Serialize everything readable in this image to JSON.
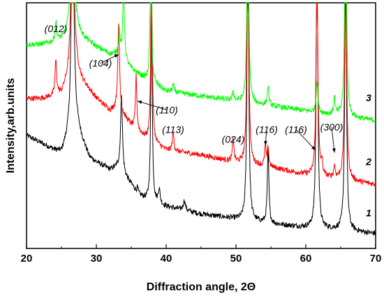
{
  "chart_data": {
    "type": "line",
    "title": "",
    "xlabel": "Diffraction angle, 2Θ",
    "ylabel": "Intensity,arb.units",
    "xlim": [
      20,
      70
    ],
    "ylim": [
      0,
      100
    ],
    "x_ticks": [
      20,
      30,
      40,
      50,
      60,
      70
    ],
    "x_tick_labels": [
      "20",
      "30",
      "40",
      "50",
      "60",
      "70"
    ],
    "grid": false,
    "y_tick_labels": false,
    "series": [
      {
        "name": "1",
        "color": "#000000",
        "baseline": [
          [
            20,
            46
          ],
          [
            22,
            43
          ],
          [
            24,
            40
          ],
          [
            25,
            39
          ],
          [
            26,
            46
          ],
          [
            27,
            52
          ],
          [
            28,
            44
          ],
          [
            29,
            37
          ],
          [
            30,
            35
          ],
          [
            32,
            32
          ],
          [
            33,
            33
          ],
          [
            35,
            26
          ],
          [
            36,
            22
          ],
          [
            37,
            20
          ],
          [
            40,
            17
          ],
          [
            45,
            14
          ],
          [
            50,
            12
          ],
          [
            55,
            10
          ],
          [
            60,
            8.5
          ],
          [
            65,
            7.5
          ],
          [
            70,
            6
          ]
        ],
        "peaks": [
          [
            26.6,
            115,
            0.18
          ],
          [
            33.6,
            32,
            0.16
          ],
          [
            35.9,
            2,
            0.12
          ],
          [
            37.9,
            82,
            0.12
          ],
          [
            39.0,
            6,
            0.15
          ],
          [
            42.6,
            4,
            0.18
          ],
          [
            51.7,
            135,
            0.13
          ],
          [
            54.6,
            30,
            0.13
          ],
          [
            61.6,
            120,
            0.14
          ],
          [
            65.7,
            115,
            0.14
          ]
        ]
      },
      {
        "name": "2",
        "color": "#ff0000",
        "baseline": [
          [
            20,
            61
          ],
          [
            22,
            61
          ],
          [
            24,
            62
          ],
          [
            25,
            63
          ],
          [
            26,
            69
          ],
          [
            27,
            74
          ],
          [
            28,
            68
          ],
          [
            30,
            61
          ],
          [
            32,
            56
          ],
          [
            33,
            57
          ],
          [
            35,
            50
          ],
          [
            37,
            45
          ],
          [
            40,
            40
          ],
          [
            45,
            38
          ],
          [
            50,
            35
          ],
          [
            55,
            33
          ],
          [
            60,
            30
          ],
          [
            65,
            28
          ],
          [
            70,
            26
          ]
        ],
        "peaks": [
          [
            24.2,
            14,
            0.14
          ],
          [
            26.6,
            110,
            0.18
          ],
          [
            33.2,
            35,
            0.15
          ],
          [
            35.7,
            22,
            0.12
          ],
          [
            37.9,
            80,
            0.12
          ],
          [
            41.0,
            7,
            0.15
          ],
          [
            49.6,
            10,
            0.12
          ],
          [
            51.7,
            120,
            0.13
          ],
          [
            54.2,
            8,
            0.12
          ],
          [
            54.6,
            8,
            0.12
          ],
          [
            61.6,
            92,
            0.14
          ],
          [
            62.3,
            5,
            0.12
          ],
          [
            64.1,
            5,
            0.12
          ],
          [
            65.7,
            110,
            0.14
          ]
        ]
      },
      {
        "name": "3",
        "color": "#00ff00",
        "baseline": [
          [
            20,
            83
          ],
          [
            22,
            83
          ],
          [
            24,
            84
          ],
          [
            25,
            85
          ],
          [
            26,
            88
          ],
          [
            27,
            90
          ],
          [
            28,
            86
          ],
          [
            30,
            82
          ],
          [
            32,
            79
          ],
          [
            33,
            79
          ],
          [
            35,
            73
          ],
          [
            37,
            69
          ],
          [
            40,
            64
          ],
          [
            45,
            62
          ],
          [
            50,
            60
          ],
          [
            55,
            58
          ],
          [
            60,
            56
          ],
          [
            65,
            54
          ],
          [
            70,
            52
          ]
        ],
        "peaks": [
          [
            24.2,
            8,
            0.14
          ],
          [
            26.6,
            100,
            0.18
          ],
          [
            33.3,
            10,
            0.14
          ],
          [
            33.9,
            30,
            0.14
          ],
          [
            37.8,
            60,
            0.12
          ],
          [
            41.0,
            3,
            0.15
          ],
          [
            49.6,
            4,
            0.12
          ],
          [
            51.7,
            100,
            0.13
          ],
          [
            54.6,
            8,
            0.13
          ],
          [
            61.6,
            13,
            0.14
          ],
          [
            64.1,
            7,
            0.12
          ],
          [
            65.7,
            100,
            0.14
          ]
        ]
      }
    ],
    "annotations": [
      {
        "text": "(012)",
        "at": [
          24.2,
          88
        ]
      },
      {
        "text": "(104)",
        "at": [
          30.6,
          74
        ],
        "arrow_to": [
          33.2,
          79
        ]
      },
      {
        "text": "(110)",
        "at": [
          40.1,
          55
        ],
        "arrow_to": [
          35.9,
          60
        ]
      },
      {
        "text": "(113)",
        "at": [
          41.0,
          47
        ]
      },
      {
        "text": "(024)",
        "at": [
          49.6,
          43
        ]
      },
      {
        "text": "(116)",
        "at": [
          54.4,
          47
        ],
        "arrow_to": [
          54.2,
          42
        ]
      },
      {
        "text": "(116)",
        "at": [
          58.6,
          47
        ],
        "arrow_to": [
          61.4,
          40
        ]
      },
      {
        "text": "(300)",
        "at": [
          63.7,
          48
        ],
        "arrow_to": [
          64.1,
          39
        ]
      }
    ],
    "curve_labels": [
      {
        "text": "1",
        "at": [
          69.0,
          13
        ]
      },
      {
        "text": "2",
        "at": [
          69.0,
          34
        ]
      },
      {
        "text": "3",
        "at": [
          69.0,
          60
        ]
      }
    ]
  }
}
